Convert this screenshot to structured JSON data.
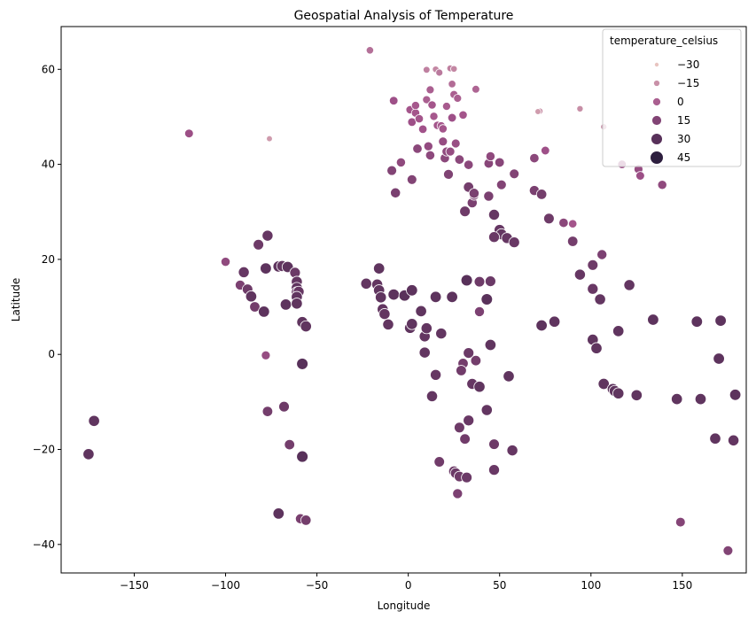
{
  "chart_data": {
    "type": "scatter",
    "title": "Geospatial Analysis of Temperature",
    "xlabel": "Longitude",
    "ylabel": "Latitude",
    "xlim": [
      -190,
      185
    ],
    "ylim": [
      -46,
      69
    ],
    "xticks": [
      -150,
      -100,
      -50,
      0,
      50,
      100,
      150
    ],
    "xtick_labels": [
      "−150",
      "−100",
      "−50",
      "0",
      "50",
      "100",
      "150"
    ],
    "yticks": [
      -40,
      -20,
      0,
      20,
      40,
      60
    ],
    "ytick_labels": [
      "−40",
      "−20",
      "0",
      "20",
      "40",
      "60"
    ],
    "grid": false,
    "legend": {
      "title": "temperature_celsius",
      "placement": "top-right",
      "entries": [
        {
          "label": "−30",
          "value": -30
        },
        {
          "label": "−15",
          "value": -15
        },
        {
          "label": "0",
          "value": 0
        },
        {
          "label": "15",
          "value": 15
        },
        {
          "label": "30",
          "value": 30
        },
        {
          "label": "45",
          "value": 45
        }
      ]
    },
    "colors": {
      "low": "#e8c4c0",
      "mid": "#a2528a",
      "high": "#2d1e3e"
    },
    "points": [
      {
        "x": -175,
        "y": -21,
        "t": 27
      },
      {
        "x": -172,
        "y": -14,
        "t": 27
      },
      {
        "x": -120,
        "y": 46.5,
        "t": 6
      },
      {
        "x": -100,
        "y": 19.5,
        "t": 10
      },
      {
        "x": -92,
        "y": 14.6,
        "t": 17
      },
      {
        "x": -90,
        "y": 17.3,
        "t": 25
      },
      {
        "x": -88,
        "y": 13.7,
        "t": 22
      },
      {
        "x": -86,
        "y": 12.2,
        "t": 27
      },
      {
        "x": -84,
        "y": 10,
        "t": 20
      },
      {
        "x": -82,
        "y": 23.1,
        "t": 22
      },
      {
        "x": -79,
        "y": 9,
        "t": 28
      },
      {
        "x": -77,
        "y": 25,
        "t": 25
      },
      {
        "x": -78,
        "y": 18.1,
        "t": 28
      },
      {
        "x": -77,
        "y": -12,
        "t": 20
      },
      {
        "x": -78,
        "y": -0.2,
        "t": 8
      },
      {
        "x": -71,
        "y": 18.5,
        "t": 28
      },
      {
        "x": -69,
        "y": 18.6,
        "t": 26
      },
      {
        "x": -67,
        "y": 10.5,
        "t": 28
      },
      {
        "x": -66,
        "y": 18.4,
        "t": 28
      },
      {
        "x": -68,
        "y": -11,
        "t": 22
      },
      {
        "x": -65,
        "y": -19,
        "t": 20
      },
      {
        "x": -62,
        "y": 17.2,
        "t": 23
      },
      {
        "x": -61,
        "y": 15.3,
        "t": 26
      },
      {
        "x": -61,
        "y": 14,
        "t": 27
      },
      {
        "x": -61,
        "y": 13.1,
        "t": 26
      },
      {
        "x": -60,
        "y": 13.2,
        "t": 25
      },
      {
        "x": -61,
        "y": 12.1,
        "t": 27
      },
      {
        "x": -61,
        "y": 10.7,
        "t": 27
      },
      {
        "x": -58,
        "y": 6.8,
        "t": 27
      },
      {
        "x": -58,
        "y": -2,
        "t": 30
      },
      {
        "x": -58,
        "y": -21.5,
        "t": 30
      },
      {
        "x": -59,
        "y": -34.6,
        "t": 18
      },
      {
        "x": -56,
        "y": -34.9,
        "t": 20
      },
      {
        "x": -56,
        "y": 5.9,
        "t": 27
      },
      {
        "x": -71,
        "y": -33.5,
        "t": 28
      },
      {
        "x": -76,
        "y": 45.4,
        "t": -18
      },
      {
        "x": -21,
        "y": 64,
        "t": -5
      },
      {
        "x": -9,
        "y": 38.7,
        "t": 15
      },
      {
        "x": -8,
        "y": 53.4,
        "t": 5
      },
      {
        "x": -7,
        "y": 34,
        "t": 18
      },
      {
        "x": -4,
        "y": 40.4,
        "t": 10
      },
      {
        "x": 1,
        "y": 51.5,
        "t": 3
      },
      {
        "x": 2,
        "y": 48.9,
        "t": 5
      },
      {
        "x": 2,
        "y": 36.8,
        "t": 15
      },
      {
        "x": 4,
        "y": 50.8,
        "t": 3
      },
      {
        "x": 4,
        "y": 52.4,
        "t": 2
      },
      {
        "x": 5,
        "y": 43.3,
        "t": 12
      },
      {
        "x": 6,
        "y": 49.6,
        "t": 3
      },
      {
        "x": 8,
        "y": 47.4,
        "t": 4
      },
      {
        "x": 10,
        "y": 59.9,
        "t": -10
      },
      {
        "x": 10,
        "y": 53.6,
        "t": 0
      },
      {
        "x": 11,
        "y": 43.8,
        "t": 9
      },
      {
        "x": 12,
        "y": 55.7,
        "t": 0
      },
      {
        "x": 12,
        "y": 41.9,
        "t": 11
      },
      {
        "x": 13,
        "y": 52.5,
        "t": 3
      },
      {
        "x": 14,
        "y": 50.1,
        "t": 2
      },
      {
        "x": 15,
        "y": 60,
        "t": -12
      },
      {
        "x": 16,
        "y": 48.2,
        "t": 3
      },
      {
        "x": 17,
        "y": 59.3,
        "t": -8
      },
      {
        "x": 18,
        "y": 48.1,
        "t": 2
      },
      {
        "x": 19,
        "y": 44.8,
        "t": 8
      },
      {
        "x": 19,
        "y": 47.5,
        "t": 3
      },
      {
        "x": 20,
        "y": 41.3,
        "t": 12
      },
      {
        "x": 21,
        "y": 52.2,
        "t": 1
      },
      {
        "x": 21,
        "y": 42.7,
        "t": 10
      },
      {
        "x": 22,
        "y": 37.9,
        "t": 16
      },
      {
        "x": 23,
        "y": 42.7,
        "t": 8
      },
      {
        "x": 23,
        "y": 60.2,
        "t": -10
      },
      {
        "x": 24,
        "y": 56.9,
        "t": -4
      },
      {
        "x": 24,
        "y": 49.8,
        "t": 5
      },
      {
        "x": 25,
        "y": 60.1,
        "t": -12
      },
      {
        "x": 25,
        "y": 54.7,
        "t": 0
      },
      {
        "x": 26,
        "y": 44.4,
        "t": 7
      },
      {
        "x": 27,
        "y": 53.9,
        "t": 0
      },
      {
        "x": 28,
        "y": 41,
        "t": 12
      },
      {
        "x": 30,
        "y": 50.4,
        "t": 3
      },
      {
        "x": 33,
        "y": 39.9,
        "t": 12
      },
      {
        "x": 35,
        "y": 31.9,
        "t": 18
      },
      {
        "x": 36,
        "y": 33.5,
        "t": 16
      },
      {
        "x": 37,
        "y": 55.8,
        "t": -2
      },
      {
        "x": 44,
        "y": 40.2,
        "t": 13
      },
      {
        "x": 45,
        "y": 41.7,
        "t": 10
      },
      {
        "x": 50,
        "y": 40.4,
        "t": 13
      },
      {
        "x": 51,
        "y": 35.7,
        "t": 15
      },
      {
        "x": 69,
        "y": 41.3,
        "t": 12
      },
      {
        "x": 69,
        "y": 34.5,
        "t": 18
      },
      {
        "x": 72,
        "y": 51.2,
        "t": -15
      },
      {
        "x": 71,
        "y": 51.1,
        "t": -18
      },
      {
        "x": 75,
        "y": 42.9,
        "t": 5
      },
      {
        "x": 73,
        "y": 33.7,
        "t": 20
      },
      {
        "x": 77,
        "y": 28.6,
        "t": 22
      },
      {
        "x": 85,
        "y": 27.7,
        "t": 12
      },
      {
        "x": 90,
        "y": 27.5,
        "t": 3
      },
      {
        "x": 94,
        "y": 51.7,
        "t": -14
      },
      {
        "x": 107,
        "y": 47.9,
        "t": -15
      },
      {
        "x": 117,
        "y": 40,
        "t": 5
      },
      {
        "x": 126,
        "y": 39,
        "t": 8
      },
      {
        "x": 127,
        "y": 37.6,
        "t": 6
      },
      {
        "x": 139,
        "y": 35.7,
        "t": 10
      },
      {
        "x": 31,
        "y": 30.1,
        "t": 22
      },
      {
        "x": 33,
        "y": 35.2,
        "t": 20
      },
      {
        "x": 36,
        "y": 33.9,
        "t": 18
      },
      {
        "x": 44,
        "y": 33.3,
        "t": 18
      },
      {
        "x": 47,
        "y": 29.4,
        "t": 25
      },
      {
        "x": 50,
        "y": 26.2,
        "t": 25
      },
      {
        "x": 51,
        "y": 25.3,
        "t": 26
      },
      {
        "x": 54,
        "y": 24.5,
        "t": 25
      },
      {
        "x": 47,
        "y": 24.7,
        "t": 24
      },
      {
        "x": 58,
        "y": 23.6,
        "t": 24
      },
      {
        "x": 58,
        "y": 38,
        "t": 15
      },
      {
        "x": 90,
        "y": 23.8,
        "t": 20
      },
      {
        "x": 94,
        "y": 16.8,
        "t": 25
      },
      {
        "x": 101,
        "y": 18.8,
        "t": 22
      },
      {
        "x": 101,
        "y": 13.8,
        "t": 24
      },
      {
        "x": 106,
        "y": 21,
        "t": 17
      },
      {
        "x": 105,
        "y": 11.6,
        "t": 26
      },
      {
        "x": 121,
        "y": 14.6,
        "t": 26
      },
      {
        "x": 101,
        "y": 3.1,
        "t": 27
      },
      {
        "x": 103,
        "y": 1.3,
        "t": 27
      },
      {
        "x": 115,
        "y": 4.9,
        "t": 27
      },
      {
        "x": 134,
        "y": 7.3,
        "t": 28
      },
      {
        "x": 158,
        "y": 6.9,
        "t": 28
      },
      {
        "x": 171,
        "y": 7.1,
        "t": 28
      },
      {
        "x": 80,
        "y": 6.9,
        "t": 27
      },
      {
        "x": 73,
        "y": 6.1,
        "t": 28
      },
      {
        "x": 107,
        "y": -6.2,
        "t": 27
      },
      {
        "x": 112,
        "y": -7.3,
        "t": 28
      },
      {
        "x": 113,
        "y": -7.7,
        "t": 27
      },
      {
        "x": 115,
        "y": -8.2,
        "t": 27
      },
      {
        "x": 125,
        "y": -8.6,
        "t": 27
      },
      {
        "x": 147,
        "y": -9.4,
        "t": 27
      },
      {
        "x": 160,
        "y": -9.4,
        "t": 27
      },
      {
        "x": 168,
        "y": -17.7,
        "t": 27
      },
      {
        "x": 178,
        "y": -18.1,
        "t": 26
      },
      {
        "x": 179,
        "y": -8.5,
        "t": 28
      },
      {
        "x": 170,
        "y": -0.9,
        "t": 28
      },
      {
        "x": 149,
        "y": -35.3,
        "t": 14
      },
      {
        "x": 175,
        "y": -41.3,
        "t": 15
      },
      {
        "x": -23,
        "y": 14.9,
        "t": 26
      },
      {
        "x": -17,
        "y": 14.7,
        "t": 26
      },
      {
        "x": -16,
        "y": 13.5,
        "t": 27
      },
      {
        "x": -15,
        "y": 12,
        "t": 27
      },
      {
        "x": -16,
        "y": 18.1,
        "t": 27
      },
      {
        "x": -14,
        "y": 9.5,
        "t": 26
      },
      {
        "x": -13,
        "y": 8.5,
        "t": 26
      },
      {
        "x": -11,
        "y": 6.3,
        "t": 26
      },
      {
        "x": -8,
        "y": 12.6,
        "t": 28
      },
      {
        "x": -2,
        "y": 12.4,
        "t": 29
      },
      {
        "x": 2,
        "y": 13.5,
        "t": 28
      },
      {
        "x": 1,
        "y": 5.6,
        "t": 27
      },
      {
        "x": 2,
        "y": 6.4,
        "t": 27
      },
      {
        "x": 7,
        "y": 9.1,
        "t": 27
      },
      {
        "x": 9,
        "y": 3.8,
        "t": 26
      },
      {
        "x": 9,
        "y": 0.4,
        "t": 26
      },
      {
        "x": 10,
        "y": 5.5,
        "t": 26
      },
      {
        "x": 15,
        "y": 12.1,
        "t": 28
      },
      {
        "x": 18,
        "y": 4.4,
        "t": 26
      },
      {
        "x": 24,
        "y": 12.1,
        "t": 28
      },
      {
        "x": 32,
        "y": 15.6,
        "t": 30
      },
      {
        "x": 39,
        "y": 15.3,
        "t": 22
      },
      {
        "x": 39,
        "y": 9,
        "t": 17
      },
      {
        "x": 43,
        "y": 11.6,
        "t": 29
      },
      {
        "x": 45,
        "y": 15.4,
        "t": 23
      },
      {
        "x": 45,
        "y": 2,
        "t": 27
      },
      {
        "x": 37,
        "y": -1.3,
        "t": 20
      },
      {
        "x": 33,
        "y": 0.3,
        "t": 23
      },
      {
        "x": 30,
        "y": -1.9,
        "t": 20
      },
      {
        "x": 29,
        "y": -3.4,
        "t": 21
      },
      {
        "x": 35,
        "y": -6.2,
        "t": 25
      },
      {
        "x": 39,
        "y": -6.8,
        "t": 27
      },
      {
        "x": 15,
        "y": -4.3,
        "t": 25
      },
      {
        "x": 13,
        "y": -8.8,
        "t": 26
      },
      {
        "x": 28,
        "y": -15.4,
        "t": 22
      },
      {
        "x": 31,
        "y": -17.8,
        "t": 21
      },
      {
        "x": 33,
        "y": -13.9,
        "t": 24
      },
      {
        "x": 43,
        "y": -11.7,
        "t": 26
      },
      {
        "x": 47,
        "y": -18.9,
        "t": 22
      },
      {
        "x": 47,
        "y": -24.3,
        "t": 24
      },
      {
        "x": 55,
        "y": -4.6,
        "t": 27
      },
      {
        "x": 57,
        "y": -20.2,
        "t": 25
      },
      {
        "x": 17,
        "y": -22.6,
        "t": 21
      },
      {
        "x": 25,
        "y": -24.6,
        "t": 22
      },
      {
        "x": 26,
        "y": -25,
        "t": 23
      },
      {
        "x": 28,
        "y": -25.7,
        "t": 22
      },
      {
        "x": 32,
        "y": -25.9,
        "t": 23
      },
      {
        "x": 27,
        "y": -29.3,
        "t": 17
      }
    ]
  }
}
